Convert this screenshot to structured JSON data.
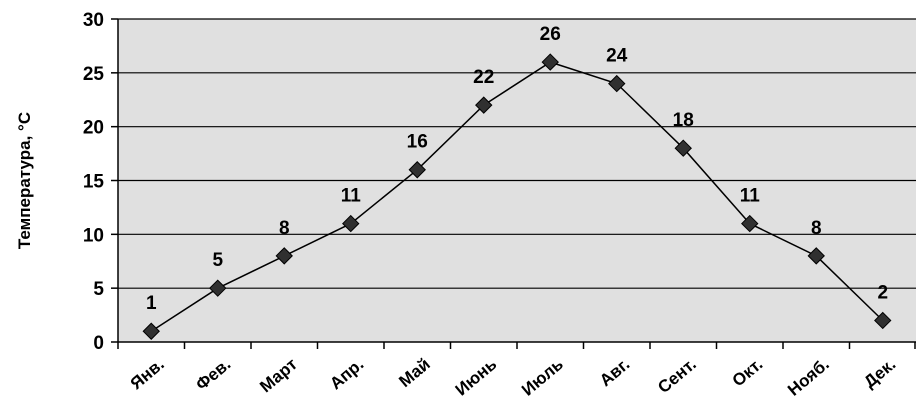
{
  "chart_data": {
    "type": "line",
    "title": "",
    "xlabel": "",
    "ylabel": "Температура, °С",
    "categories": [
      "Янв.",
      "Фев.",
      "Март",
      "Апр.",
      "Май",
      "Июнь",
      "Июль",
      "Авг.",
      "Сент.",
      "Окт.",
      "Нояб.",
      "Дек."
    ],
    "series": [
      {
        "values": [
          1,
          5,
          8,
          11,
          16,
          22,
          26,
          24,
          18,
          11,
          8,
          2
        ]
      }
    ],
    "ylim": [
      0,
      30
    ],
    "yticks": [
      0,
      5,
      10,
      15,
      20,
      25,
      30
    ],
    "grid": true,
    "legend": "none",
    "colors": {
      "plot_background": "#e0e0e0",
      "line": "#000000",
      "marker": "#303030",
      "grid": "#000000"
    }
  }
}
